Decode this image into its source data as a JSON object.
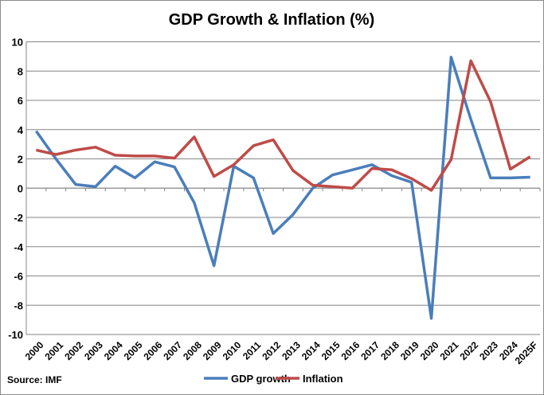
{
  "chart_data": {
    "type": "line",
    "title": "GDP Growth & Inflation (%)",
    "source": "Source: IMF",
    "categories": [
      "2000",
      "2001",
      "2002",
      "2003",
      "2004",
      "2005",
      "2006",
      "2007",
      "2008",
      "2009",
      "2010",
      "2011",
      "2012",
      "2013",
      "2014",
      "2015",
      "2016",
      "2017",
      "2018",
      "2019",
      "2020",
      "2021",
      "2022",
      "2023",
      "2024",
      "2025F"
    ],
    "ylim": [
      -10,
      10
    ],
    "yticks": [
      10,
      8,
      6,
      4,
      2,
      0,
      -2,
      -4,
      -6,
      -8,
      -10
    ],
    "grid": true,
    "legend": "bottom",
    "series": [
      {
        "name": "GDP growth",
        "color": "#4a7ebb",
        "values": [
          3.9,
          2.0,
          0.25,
          0.1,
          1.5,
          0.7,
          1.8,
          1.45,
          -1.0,
          -5.3,
          1.5,
          0.7,
          -3.1,
          -1.8,
          0.0,
          0.9,
          1.25,
          1.6,
          0.85,
          0.4,
          -8.9,
          8.95,
          4.7,
          0.7,
          0.7,
          0.75
        ]
      },
      {
        "name": "Inflation",
        "color": "#be4b48",
        "values": [
          2.6,
          2.3,
          2.6,
          2.8,
          2.25,
          2.2,
          2.2,
          2.05,
          3.5,
          0.8,
          1.6,
          2.9,
          3.3,
          1.2,
          0.2,
          0.1,
          0.0,
          1.35,
          1.25,
          0.65,
          -0.15,
          1.95,
          8.7,
          5.9,
          1.3,
          2.15
        ]
      }
    ]
  }
}
